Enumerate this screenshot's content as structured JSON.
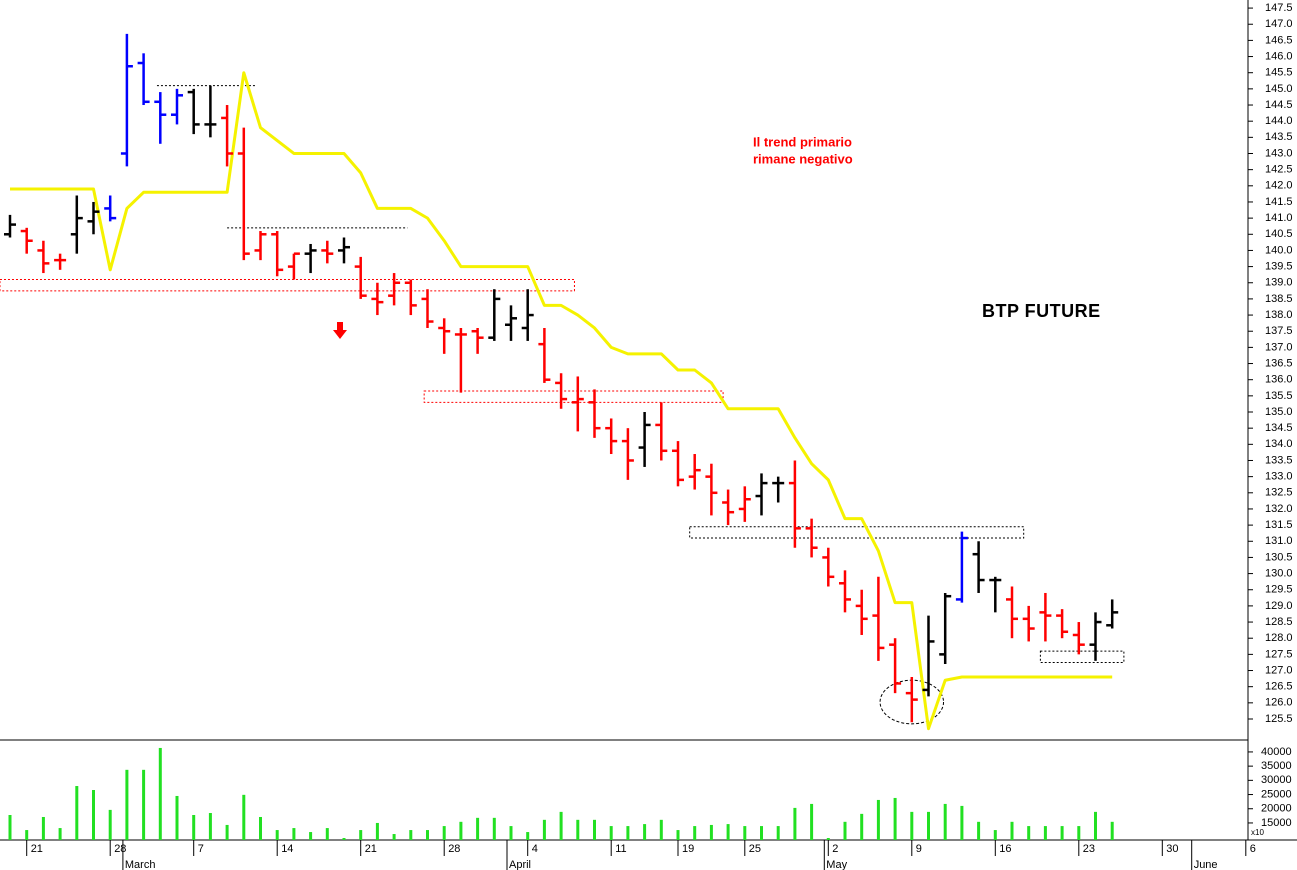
{
  "chart_data": {
    "type": "ohlc",
    "title": "BTP FUTURE",
    "annotation": [
      "Il trend primario",
      "rimane negativo"
    ],
    "annotation_color": "#ff0000",
    "categories": [
      null,
      "21",
      null,
      null,
      null,
      null,
      "28",
      null,
      null,
      null,
      null,
      "7",
      null,
      null,
      null,
      null,
      "14",
      null,
      null,
      null,
      null,
      "21",
      null,
      null,
      null,
      null,
      "28",
      null,
      null,
      null,
      null,
      "4",
      null,
      null,
      null,
      null,
      "11",
      null,
      null,
      null,
      "19",
      null,
      null,
      null,
      "25",
      null,
      null,
      null,
      null,
      "2",
      null,
      null,
      null,
      null,
      "9",
      null,
      null,
      null,
      null,
      "16",
      null,
      null,
      null,
      null,
      "23",
      null,
      null,
      null,
      null,
      "30",
      null,
      null,
      null,
      null,
      "6"
    ],
    "months": [
      null,
      null,
      null,
      null,
      null,
      null,
      null,
      "March",
      null,
      null,
      null,
      null,
      null,
      null,
      null,
      null,
      null,
      null,
      null,
      null,
      null,
      null,
      null,
      null,
      null,
      null,
      null,
      null,
      null,
      null,
      "April",
      null,
      null,
      null,
      null,
      null,
      null,
      null,
      null,
      null,
      null,
      null,
      null,
      null,
      null,
      null,
      null,
      null,
      null,
      "May",
      null,
      null,
      null,
      null,
      null,
      null,
      null,
      null,
      null,
      null,
      null,
      null,
      null,
      null,
      null,
      null,
      null,
      null,
      null,
      null,
      null,
      "June",
      null,
      null,
      null
    ],
    "ohlc": {
      "open": [
        140.5,
        140.6,
        140.0,
        139.7,
        140.5,
        140.9,
        141.3,
        143.0,
        145.8,
        144.6,
        144.2,
        144.9,
        143.9,
        144.1,
        143.0,
        140.0,
        140.5,
        139.5,
        139.9,
        140.0,
        140.0,
        139.5,
        138.5,
        138.6,
        139.0,
        138.5,
        137.6,
        137.4,
        137.5,
        137.3,
        137.7,
        137.6,
        137.1,
        135.9,
        135.3,
        135.3,
        134.5,
        134.1,
        133.9,
        134.6,
        133.8,
        133.0,
        133.0,
        132.2,
        132.0,
        132.4,
        132.8,
        132.8,
        131.4,
        130.5,
        129.7,
        129.0,
        128.7,
        127.8,
        126.3,
        126.4,
        127.5,
        129.2,
        130.6,
        129.8,
        129.2,
        128.6,
        128.8,
        128.7,
        128.1,
        127.8,
        128.4,
        null,
        null,
        null,
        null,
        null,
        null,
        null,
        null
      ],
      "high": [
        141.1,
        140.7,
        140.3,
        139.9,
        141.7,
        141.5,
        141.7,
        146.7,
        146.1,
        144.9,
        145.0,
        145.0,
        145.1,
        144.5,
        143.8,
        140.6,
        140.6,
        139.9,
        140.2,
        140.3,
        140.4,
        139.8,
        139.0,
        139.3,
        139.1,
        138.8,
        137.9,
        137.6,
        137.6,
        138.8,
        138.3,
        138.8,
        137.6,
        136.2,
        136.1,
        135.7,
        134.8,
        134.5,
        135.0,
        135.3,
        134.1,
        133.7,
        133.4,
        132.6,
        132.7,
        133.1,
        133.0,
        133.5,
        131.7,
        130.8,
        130.1,
        129.5,
        129.9,
        128.0,
        126.8,
        128.7,
        129.4,
        131.3,
        131.0,
        129.9,
        129.6,
        129.0,
        129.4,
        128.9,
        128.5,
        128.8,
        129.2,
        null,
        null,
        null,
        null,
        null,
        null,
        null,
        null
      ],
      "low": [
        140.4,
        139.9,
        139.3,
        139.4,
        139.9,
        140.5,
        140.9,
        142.6,
        144.5,
        143.3,
        143.9,
        143.6,
        143.5,
        142.6,
        139.7,
        139.7,
        139.2,
        139.1,
        139.3,
        139.6,
        139.6,
        138.5,
        138.0,
        138.3,
        138.0,
        137.6,
        136.8,
        135.6,
        136.8,
        137.2,
        137.2,
        137.2,
        135.9,
        135.1,
        134.4,
        134.2,
        133.7,
        132.9,
        133.3,
        133.5,
        132.7,
        132.6,
        131.8,
        131.5,
        131.6,
        131.8,
        132.2,
        130.8,
        130.5,
        129.6,
        128.8,
        128.1,
        127.3,
        126.3,
        125.4,
        126.2,
        127.2,
        129.1,
        129.4,
        128.8,
        128.0,
        127.9,
        127.9,
        128.0,
        127.5,
        127.3,
        128.3,
        null,
        null,
        null,
        null,
        null,
        null,
        null,
        null
      ],
      "close": [
        140.8,
        140.3,
        139.6,
        139.7,
        141.0,
        141.2,
        141.0,
        145.7,
        144.6,
        144.2,
        144.8,
        143.9,
        143.9,
        143.0,
        139.9,
        140.5,
        139.4,
        139.9,
        140.0,
        139.9,
        140.1,
        138.6,
        138.4,
        139.0,
        138.3,
        137.8,
        137.5,
        137.4,
        137.3,
        138.5,
        137.9,
        138.0,
        136.0,
        135.4,
        135.4,
        134.5,
        134.1,
        133.5,
        134.6,
        133.8,
        132.9,
        133.2,
        132.5,
        131.9,
        132.3,
        132.8,
        132.8,
        131.4,
        130.8,
        129.9,
        129.2,
        128.6,
        127.7,
        126.6,
        126.1,
        127.9,
        129.3,
        131.1,
        129.8,
        129.8,
        128.6,
        128.3,
        128.7,
        128.2,
        127.8,
        128.5,
        128.8,
        null,
        null,
        null,
        null,
        null,
        null,
        null,
        null
      ],
      "colors": [
        "#000",
        "#f00",
        "#f00",
        "#f00",
        "#000",
        "#000",
        "#00f",
        "#00f",
        "#00f",
        "#00f",
        "#00f",
        "#000",
        "#000",
        "#f00",
        "#f00",
        "#f00",
        "#f00",
        "#f00",
        "#000",
        "#f00",
        "#000",
        "#f00",
        "#f00",
        "#f00",
        "#f00",
        "#f00",
        "#f00",
        "#f00",
        "#f00",
        "#000",
        "#000",
        "#000",
        "#f00",
        "#f00",
        "#f00",
        "#f00",
        "#f00",
        "#f00",
        "#000",
        "#f00",
        "#f00",
        "#f00",
        "#f00",
        "#f00",
        "#f00",
        "#000",
        "#000",
        "#f00",
        "#f00",
        "#f00",
        "#f00",
        "#f00",
        "#f00",
        "#f00",
        "#f00",
        "#000",
        "#000",
        "#00f",
        "#000",
        "#000",
        "#f00",
        "#f00",
        "#f00",
        "#f00",
        "#f00",
        "#000",
        "#000",
        null,
        null,
        null,
        null,
        null,
        null,
        null,
        null
      ]
    },
    "stop": {
      "color": "#f5f200",
      "values": [
        141.9,
        141.9,
        141.9,
        141.9,
        141.9,
        141.9,
        139.4,
        141.3,
        141.8,
        141.8,
        141.8,
        141.8,
        141.8,
        141.8,
        145.5,
        143.8,
        143.4,
        143.0,
        143.0,
        143.0,
        143.0,
        142.4,
        141.3,
        141.3,
        141.3,
        141.0,
        140.3,
        139.5,
        139.5,
        139.5,
        139.5,
        139.5,
        138.3,
        138.3,
        138.0,
        137.6,
        137.0,
        136.8,
        136.8,
        136.8,
        136.3,
        136.3,
        135.9,
        135.1,
        135.1,
        135.1,
        135.1,
        134.2,
        133.4,
        132.9,
        131.7,
        131.7,
        130.7,
        129.1,
        129.1,
        125.2,
        126.7,
        126.8,
        126.8,
        126.8,
        126.8,
        126.8,
        126.8,
        126.8,
        126.8,
        126.8,
        126.8,
        null,
        null,
        null,
        null,
        null,
        null,
        null,
        null
      ]
    },
    "ylim": [
      124.85,
      147.75
    ],
    "yticks": [
      125.5,
      {
        "value": 126,
        "label": "126.0"
      },
      126.5,
      {
        "value": 127,
        "label": "127.0"
      },
      127.5,
      {
        "value": 128,
        "label": "128.0"
      },
      128.5,
      {
        "value": 129,
        "label": "129.0"
      },
      129.5,
      {
        "value": 130,
        "label": "130.0"
      },
      130.5,
      {
        "value": 131,
        "label": "131.0"
      },
      131.5,
      {
        "value": 132,
        "label": "132.0"
      },
      132.5,
      {
        "value": 133,
        "label": "133.0"
      },
      133.5,
      {
        "value": 134,
        "label": "134.0"
      },
      134.5,
      {
        "value": 135,
        "label": "135.0"
      },
      135.5,
      {
        "value": 136,
        "label": "136.0"
      },
      136.5,
      {
        "value": 137,
        "label": "137.0"
      },
      137.5,
      {
        "value": 138,
        "label": "138.0"
      },
      138.5,
      {
        "value": 139,
        "label": "139.0"
      },
      139.5,
      {
        "value": 140,
        "label": "140.0"
      },
      140.5,
      {
        "value": 141,
        "label": "141.0"
      },
      141.5,
      {
        "value": 142,
        "label": "142.0"
      },
      142.5,
      {
        "value": 143,
        "label": "143.0"
      },
      143.5,
      {
        "value": 144,
        "label": "144.0"
      },
      144.5,
      {
        "value": 145,
        "label": "145.0"
      },
      145.5,
      {
        "value": 146,
        "label": "146.0"
      },
      146.5,
      {
        "value": 147,
        "label": "147.0"
      },
      147.5
    ],
    "zones": [
      {
        "x": [
          8.8,
          14.7
        ],
        "y": [
          145.1,
          145.1
        ],
        "color": "#000"
      },
      {
        "x": [
          13,
          23.8
        ],
        "y": [
          140.7,
          140.7
        ],
        "color": "#000"
      },
      {
        "x": [
          -0.6,
          33.8
        ],
        "y": [
          139.1,
          138.75
        ],
        "color": "#f00"
      },
      {
        "x": [
          24.8,
          42.7
        ],
        "y": [
          135.65,
          135.3
        ],
        "color": "#f00"
      },
      {
        "x": [
          40.7,
          60.7
        ],
        "y": [
          131.45,
          131.1
        ],
        "color": "#000"
      },
      {
        "x": [
          61.7,
          66.7
        ],
        "y": [
          127.6,
          127.25
        ],
        "color": "#000"
      }
    ],
    "circle": {
      "x": [
        52.1,
        55.9
      ],
      "y": [
        126.7,
        125.35
      ]
    },
    "volume": {
      "type": "bar",
      "color": "#22e022",
      "axis_note": "x10",
      "ylim": [
        9000,
        44200
      ],
      "yticks": [
        15000,
        20000,
        25000,
        30000,
        35000,
        40000
      ],
      "values": [
        17800,
        12500,
        17100,
        13200,
        28000,
        26600,
        19600,
        33700,
        33700,
        41400,
        24500,
        17800,
        18500,
        14300,
        24900,
        17100,
        12500,
        13200,
        11800,
        13200,
        9700,
        12500,
        15000,
        11100,
        12500,
        12500,
        13900,
        15400,
        16800,
        16800,
        13900,
        11800,
        16100,
        18900,
        16100,
        16100,
        13900,
        13900,
        14600,
        16100,
        12500,
        13900,
        14300,
        14600,
        13900,
        13900,
        13900,
        20300,
        21700,
        9700,
        15400,
        18200,
        23100,
        23800,
        18900,
        18900,
        21700,
        21000,
        15400,
        12500,
        15400,
        13900,
        13900,
        13900,
        13900,
        18900,
        15400,
        null,
        null,
        null,
        null,
        null,
        null,
        null,
        null
      ]
    }
  }
}
